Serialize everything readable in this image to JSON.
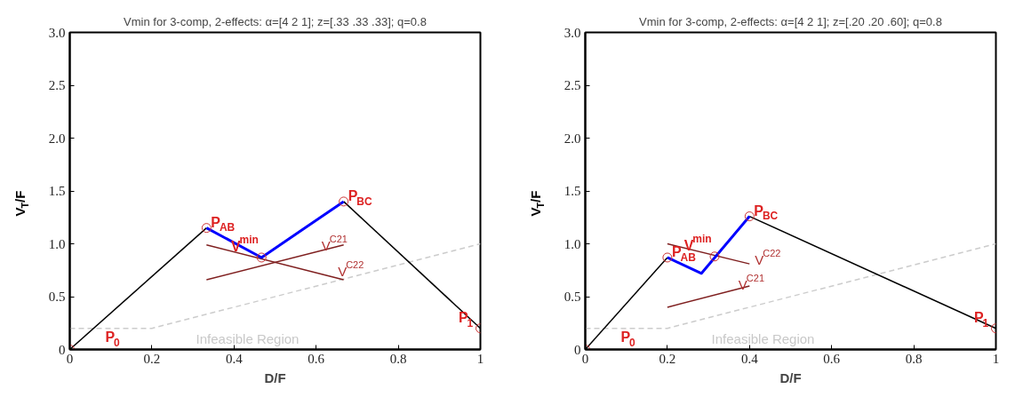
{
  "chart_data": [
    {
      "type": "line",
      "title": "Vmin for 3-comp, 2-effects: α=[4 2 1]; z=[.33 .33 .33]; q=0.8",
      "xlabel": "D/F",
      "ylabel": "V$_{T}$/F",
      "xlim": [
        0,
        1
      ],
      "ylim": [
        0,
        3
      ],
      "xticks": [
        0,
        0.2,
        0.4,
        0.6,
        0.8,
        1
      ],
      "yticks": [
        0,
        0.5,
        {
          "value": 1,
          "label": "1.0"
        },
        1.5,
        {
          "value": 2,
          "label": "2.0"
        },
        2.5,
        {
          "value": 3,
          "label": "3.0"
        }
      ],
      "grid": false,
      "series": [
        {
          "color": "#cccccc",
          "line_style": "dashed",
          "marker": "none",
          "x": [
            0,
            0.2,
            1
          ],
          "values": [
            0.2,
            0.2,
            1
          ]
        },
        {
          "color": "#000000",
          "line_style": "solid",
          "marker": "none",
          "x": [
            0,
            0.333
          ],
          "values": [
            0,
            1.15
          ]
        },
        {
          "color": "#000000",
          "line_style": "solid",
          "marker": "none",
          "x": [
            0.667,
            1
          ],
          "values": [
            1.4,
            0.2
          ]
        },
        {
          "color": "#7f1f1f",
          "line_style": "solid",
          "marker": "none",
          "x": [
            0.333,
            0.667
          ],
          "values": [
            0.66,
            0.99
          ]
        },
        {
          "color": "#7f1f1f",
          "line_style": "solid",
          "marker": "none",
          "x": [
            0.333,
            0.667
          ],
          "values": [
            0.99,
            0.66
          ]
        },
        {
          "color": "#0000ff",
          "line_style": "solid",
          "marker": "none",
          "x": [
            0.333,
            0.467,
            0.667
          ],
          "values": [
            1.15,
            0.87,
            1.4
          ]
        },
        {
          "type": "scatter",
          "color": "#cc3333",
          "marker": "circle",
          "x": [
            0,
            0.333,
            0.467,
            0.667,
            1
          ],
          "values": [
            0,
            1.15,
            0.87,
            1.4,
            0.2
          ]
        }
      ],
      "annotations": [
        {
          "text": "P$_{0}$",
          "x": 0,
          "y": 0
        },
        {
          "text": "P$_{AB}$",
          "x": 0.333,
          "y": 1.15
        },
        {
          "text": "V$^{min}$",
          "x": 0.467,
          "y": 0.87
        },
        {
          "text": "P$_{BC}$",
          "x": 0.667,
          "y": 1.4
        },
        {
          "text": "P$_{1}$",
          "x": 1,
          "y": 0.2
        },
        {
          "text": "V$^{C21}$",
          "x": 0.6,
          "y": 0.93
        },
        {
          "text": "V$^{C22}$",
          "x": 0.64,
          "y": 0.69
        },
        "Infeasible Region"
      ]
    },
    {
      "type": "line",
      "title": "Vmin for 3-comp, 2-effects: α=[4 2 1]; z=[.20 .20 .60]; q=0.8",
      "xlabel": "D/F",
      "ylabel": "V$_{T}$/F",
      "xlim": [
        0,
        1
      ],
      "ylim": [
        0,
        3
      ],
      "xticks": [
        0,
        0.2,
        0.4,
        0.6,
        0.8,
        1
      ],
      "yticks": [
        0,
        0.5,
        {
          "value": 1,
          "label": "1.0"
        },
        1.5,
        {
          "value": 2,
          "label": "2.0"
        },
        2.5,
        {
          "value": 3,
          "label": "3.0"
        }
      ],
      "grid": false,
      "series": [
        {
          "color": "#cccccc",
          "line_style": "dashed",
          "marker": "none",
          "x": [
            0,
            0.2,
            1
          ],
          "values": [
            0.2,
            0.2,
            1
          ]
        },
        {
          "color": "#000000",
          "line_style": "solid",
          "marker": "none",
          "x": [
            0,
            0.2
          ],
          "values": [
            0,
            0.87
          ]
        },
        {
          "color": "#000000",
          "line_style": "solid",
          "marker": "none",
          "x": [
            0.4,
            1
          ],
          "values": [
            1.26,
            0.2
          ]
        },
        {
          "color": "#7f1f1f",
          "line_style": "solid",
          "marker": "none",
          "x": [
            0.2,
            0.4
          ],
          "values": [
            0.4,
            0.6
          ]
        },
        {
          "color": "#7f1f1f",
          "line_style": "solid",
          "marker": "none",
          "x": [
            0.2,
            0.4
          ],
          "values": [
            1.0,
            0.81
          ]
        },
        {
          "color": "#0000ff",
          "line_style": "solid",
          "marker": "none",
          "x": [
            0.2,
            0.283,
            0.4
          ],
          "values": [
            0.87,
            0.72,
            1.26
          ]
        },
        {
          "type": "scatter",
          "color": "#cc3333",
          "marker": "circle",
          "x": [
            0,
            0.2,
            0.315,
            0.4,
            1
          ],
          "values": [
            0,
            0.87,
            0.88,
            1.26,
            0.2
          ]
        }
      ],
      "annotations": [
        {
          "text": "P$_{0}$",
          "x": 0,
          "y": 0
        },
        {
          "text": "P$_{AB}$",
          "x": 0.2,
          "y": 0.87
        },
        {
          "text": "V$^{min}$",
          "x": 0.315,
          "y": 0.88
        },
        {
          "text": "P$_{BC}$",
          "x": 0.4,
          "y": 1.26
        },
        {
          "text": "P$_{1}$",
          "x": 1,
          "y": 0.2
        },
        {
          "text": "V$^{C22}$",
          "x": 0.4,
          "y": 0.8
        },
        {
          "text": "V$^{C21}$",
          "x": 0.36,
          "y": 0.56
        },
        "Infeasible Region"
      ]
    }
  ]
}
